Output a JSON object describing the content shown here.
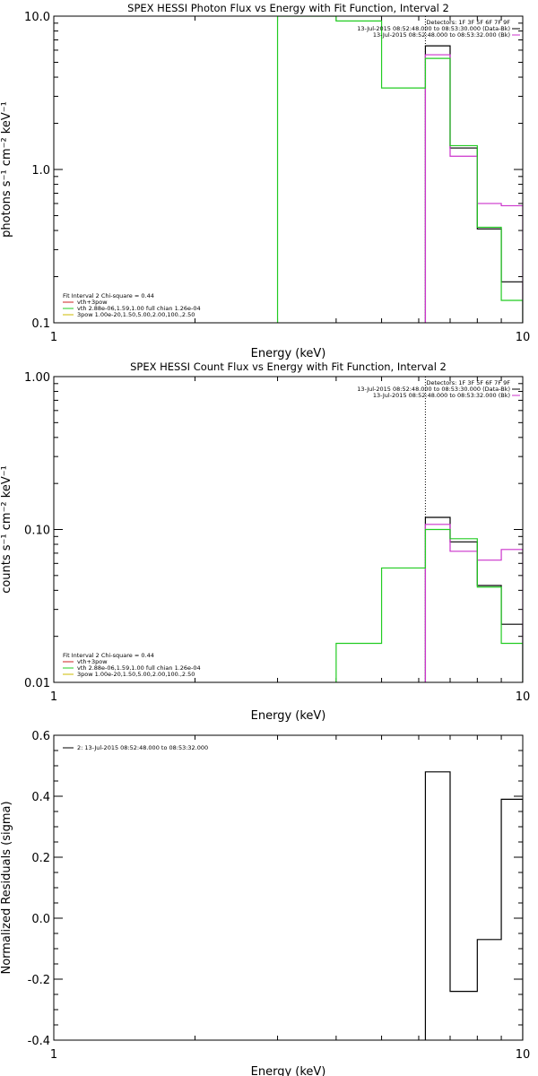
{
  "colors": {
    "black": "#000000",
    "green": "#22cc22",
    "magenta": "#cc33cc",
    "red": "#cc2222",
    "yellow": "#ccbb00"
  },
  "chart_data": [
    {
      "type": "line",
      "step": true,
      "title": "SPEX HESSI Photon Flux vs Energy with Fit Function, Interval 2",
      "xlabel": "Energy (keV)",
      "ylabel": "photons s⁻¹ cm⁻² keV⁻¹",
      "xscale": "log",
      "yscale": "log",
      "xlim": [
        1,
        10
      ],
      "ylim": [
        0.1,
        10
      ],
      "xtick_labels": [
        "1",
        "10"
      ],
      "ytick_labels": [
        "0.1",
        "1.0",
        "10.0"
      ],
      "vline_x": 6.2,
      "legend_top": {
        "lines": [
          "Detectors: 1F 3F 5F 6F 7F 9F",
          "13-Jul-2015 08:52:48.000 to 08:53:30.000 (Data-Bk)",
          "13-Jul-2015 08:52:48.000 to 08:53:32.000 (Bk)"
        ]
      },
      "legend_bottom": {
        "lines": [
          "Fit Interval 2   Chi-square = 0.44",
          "vth+3pow",
          "vth 2.88e-06,1.59,1.00  full chian 1.26e-04",
          "3pow 1.00e-20,1.50,5.00,2.00,100.,2.50"
        ]
      },
      "series": [
        {
          "name": "13-Jul-2015 08:52:48.000 to 08:53:30.000 (Data-Bk)",
          "edges": [
            6.2,
            7.0,
            8.0,
            9.0,
            10.0
          ],
          "values": [
            6.4,
            1.38,
            0.41,
            0.185
          ]
        },
        {
          "name": "13-Jul-2015 08:52:48.000 to 08:53:32.000 (Bk)",
          "edges": [
            6.2,
            7.0,
            8.0,
            9.0,
            10.0
          ],
          "values": [
            5.6,
            1.22,
            0.6,
            0.58
          ]
        },
        {
          "name": "vth 2.88e-06,1.59,1.00  full chian 1.26e-04",
          "edges": [
            3.0,
            4.0,
            5.0,
            6.2,
            7.0,
            8.0,
            9.0,
            10.0
          ],
          "values": [
            10.0,
            9.3,
            3.4,
            5.3,
            1.43,
            0.42,
            0.14
          ]
        }
      ]
    },
    {
      "type": "line",
      "step": true,
      "title": "SPEX HESSI Count Flux vs Energy with Fit Function, Interval 2",
      "xlabel": "Energy (keV)",
      "ylabel": "counts s⁻¹ cm⁻² keV⁻¹",
      "xscale": "log",
      "yscale": "log",
      "xlim": [
        1,
        10
      ],
      "ylim": [
        0.01,
        1
      ],
      "xtick_labels": [
        "1",
        "10"
      ],
      "ytick_labels": [
        "0.01",
        "0.10",
        "1.00"
      ],
      "vline_x": 6.2,
      "legend_top": {
        "lines": [
          "Detectors: 1F 3F 5F 6F 7F 9F",
          "13-Jul-2015 08:52:48.000 to 08:53:30.000 (Data-Bk)",
          "13-Jul-2015 08:52:48.000 to 08:53:32.000 (Bk)"
        ]
      },
      "legend_bottom": {
        "lines": [
          "Fit Interval 2   Chi-square = 0.44",
          "vth+3pow",
          "vth 2.88e-06,1.59,1.00  full chian 1.26e-04",
          "3pow 1.00e-20,1.50,5.00,2.00,100.,2.50"
        ]
      },
      "series": [
        {
          "name": "13-Jul-2015 08:52:48.000 to 08:53:30.000 (Data-Bk)",
          "edges": [
            6.2,
            7.0,
            8.0,
            9.0,
            10.0
          ],
          "values": [
            0.12,
            0.083,
            0.043,
            0.024
          ]
        },
        {
          "name": "13-Jul-2015 08:52:48.000 to 08:53:32.000 (Bk)",
          "edges": [
            6.2,
            7.0,
            8.0,
            9.0,
            10.0
          ],
          "values": [
            0.108,
            0.072,
            0.063,
            0.074
          ]
        },
        {
          "name": "vth 2.88e-06,1.59,1.00  full chian 1.26e-04",
          "edges": [
            4.0,
            5.0,
            6.2,
            7.0,
            8.0,
            9.0,
            10.0
          ],
          "values": [
            0.018,
            0.056,
            0.1,
            0.087,
            0.042,
            0.018
          ]
        }
      ]
    },
    {
      "type": "line",
      "step": true,
      "title": "",
      "xlabel": "Energy (keV)",
      "ylabel": "Normalized Residuals (sigma)",
      "xscale": "log",
      "yscale": "linear",
      "xlim": [
        1,
        10
      ],
      "ylim": [
        -0.4,
        0.6
      ],
      "xtick_labels": [
        "1",
        "10"
      ],
      "ytick_labels": [
        "-0.4",
        "-0.2",
        "0.0",
        "0.2",
        "0.4",
        "0.6"
      ],
      "legend_top": {
        "lines": [
          "2: 13-Jul-2015 08:52:48.000 to 08:53:32.000"
        ]
      },
      "series": [
        {
          "name": "2: 13-Jul-2015 08:52:48.000 to 08:53:32.000",
          "edges": [
            6.2,
            7.0,
            8.0,
            9.0,
            10.0
          ],
          "values": [
            0.48,
            -0.24,
            -0.07,
            0.39
          ]
        }
      ]
    }
  ]
}
